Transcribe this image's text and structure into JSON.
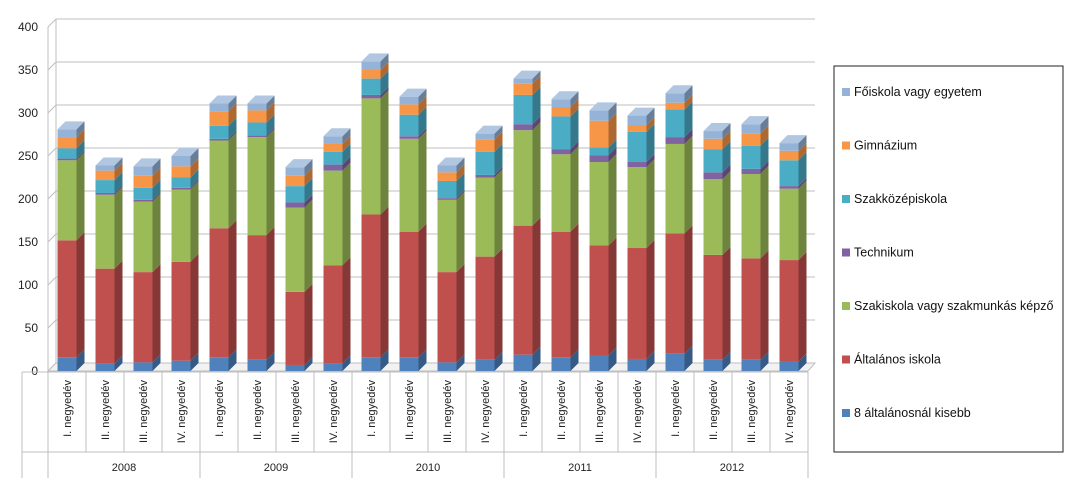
{
  "chart_data": {
    "type": "bar",
    "stacked": true,
    "three_d": true,
    "title": "",
    "xlabel": "",
    "ylabel": "",
    "ylim": [
      0,
      400
    ],
    "yticks": [
      0,
      50,
      100,
      150,
      200,
      250,
      300,
      350,
      400
    ],
    "grid": true,
    "legend_position": "right",
    "groups": [
      {
        "label": "2008",
        "categories": [
          "I. negyedév",
          "II. negyedév",
          "III. negyedév",
          "IV. negyedév"
        ]
      },
      {
        "label": "2009",
        "categories": [
          "I. negyedév",
          "II. negyedév",
          "III. negyedév",
          "IV. negyedév"
        ]
      },
      {
        "label": "2010",
        "categories": [
          "I. negyedév",
          "II. negyedév",
          "III. negyedév",
          "IV. negyedév"
        ]
      },
      {
        "label": "2011",
        "categories": [
          "I. negyedév",
          "II. negyedév",
          "III. negyedév",
          "IV. negyedév"
        ]
      },
      {
        "label": "2012",
        "categories": [
          "I. negyedév",
          "II. negyedév",
          "III. negyedév",
          "IV. negyedév"
        ]
      }
    ],
    "series": [
      {
        "name": "8 általánosnál kisebb",
        "color": "#4f81bd",
        "values": [
          16,
          9,
          10,
          12,
          16,
          13,
          7,
          9,
          16,
          16,
          10,
          13,
          19,
          16,
          18,
          14,
          20,
          13,
          13,
          11
        ]
      },
      {
        "name": "Általános iskola",
        "color": "#c0504d",
        "values": [
          136,
          110,
          105,
          115,
          150,
          145,
          85,
          114,
          166,
          146,
          105,
          120,
          150,
          146,
          128,
          129,
          140,
          122,
          118,
          118
        ]
      },
      {
        "name": "Szakiskola vagy szakmunkás képző",
        "color": "#9bbb59",
        "values": [
          93,
          86,
          82,
          84,
          102,
          114,
          98,
          110,
          135,
          108,
          84,
          92,
          111,
          90,
          97,
          94,
          104,
          88,
          98,
          83
        ]
      },
      {
        "name": "Technikum",
        "color": "#8064a2",
        "values": [
          2,
          2,
          2,
          2,
          2,
          2,
          6,
          7,
          4,
          3,
          2,
          3,
          7,
          6,
          8,
          6,
          8,
          8,
          6,
          3
        ]
      },
      {
        "name": "Szakközépiskola",
        "color": "#4bacc6",
        "values": [
          12,
          15,
          14,
          12,
          15,
          15,
          19,
          15,
          19,
          25,
          20,
          27,
          34,
          38,
          9,
          35,
          32,
          27,
          27,
          30
        ]
      },
      {
        "name": "Gimnázium",
        "color": "#f79646",
        "values": [
          13,
          11,
          14,
          13,
          17,
          14,
          12,
          9,
          10,
          12,
          10,
          14,
          13,
          11,
          31,
          8,
          8,
          12,
          14,
          11
        ]
      },
      {
        "name": "Főiskola vagy egyetem",
        "color": "#95b3d7",
        "values": [
          9,
          6,
          11,
          12,
          9,
          8,
          10,
          9,
          10,
          9,
          8,
          7,
          6,
          9,
          12,
          11,
          11,
          9,
          11,
          9
        ]
      }
    ]
  }
}
